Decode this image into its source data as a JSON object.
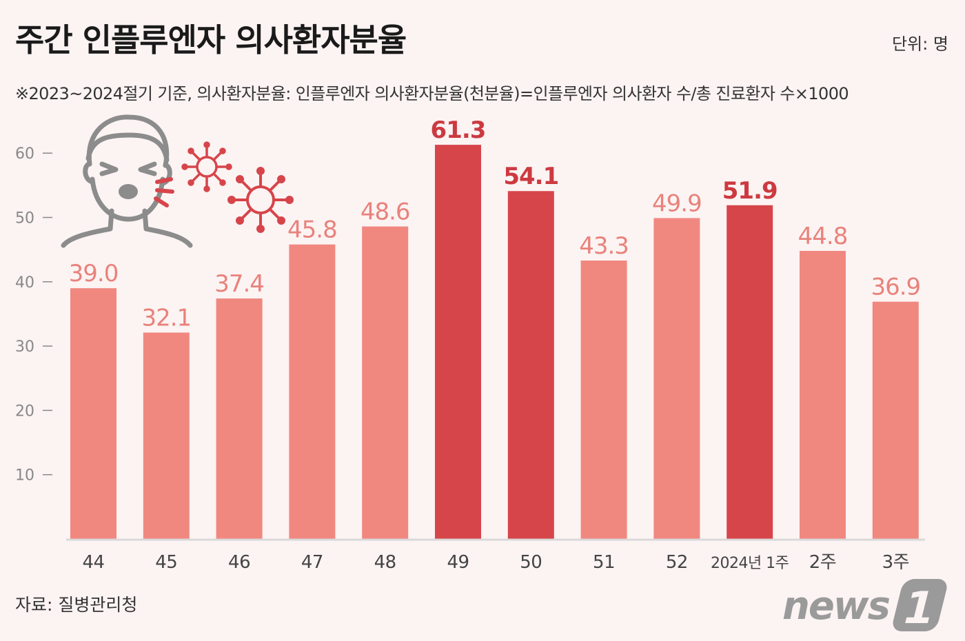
{
  "header": {
    "title": "주간 인플루엔자 의사환자분율",
    "unit": "단위: 명",
    "note": "※2023~2024절기 기준, 의사환자분율: 인플루엔자 의사환자분율(천분율)=인플루엔자 의사환자 수/총 진료환자 수×1000"
  },
  "footer": {
    "source": "자료: 질병관리청",
    "logo_text": "news",
    "logo_mark": "1"
  },
  "colors": {
    "bar_normal": "#f08880",
    "bar_highlight": "#d6454a",
    "label_normal": "#e8827b",
    "label_highlight": "#cc3a40",
    "axis": "#888888",
    "baseline": "#d9d9d9"
  },
  "chart_data": {
    "type": "bar",
    "categories": [
      "44",
      "45",
      "46",
      "47",
      "48",
      "49",
      "50",
      "51",
      "52",
      "2024년 1주",
      "2주",
      "3주"
    ],
    "values": [
      39.0,
      32.1,
      37.4,
      45.8,
      48.6,
      61.3,
      54.1,
      43.3,
      49.9,
      51.9,
      44.8,
      36.9
    ],
    "value_labels": [
      "39.0",
      "32.1",
      "37.4",
      "45.8",
      "48.6",
      "61.3",
      "54.1",
      "43.3",
      "49.9",
      "51.9",
      "44.8",
      "36.9"
    ],
    "highlighted": [
      false,
      false,
      false,
      false,
      false,
      true,
      true,
      false,
      false,
      true,
      false,
      false
    ],
    "yticks": [
      10,
      20,
      30,
      40,
      50,
      60
    ],
    "ylim": [
      0,
      60
    ],
    "title": "주간 인플루엔자 의사환자분율",
    "xlabel": "",
    "ylabel": "",
    "grid": false,
    "legend": "none"
  }
}
